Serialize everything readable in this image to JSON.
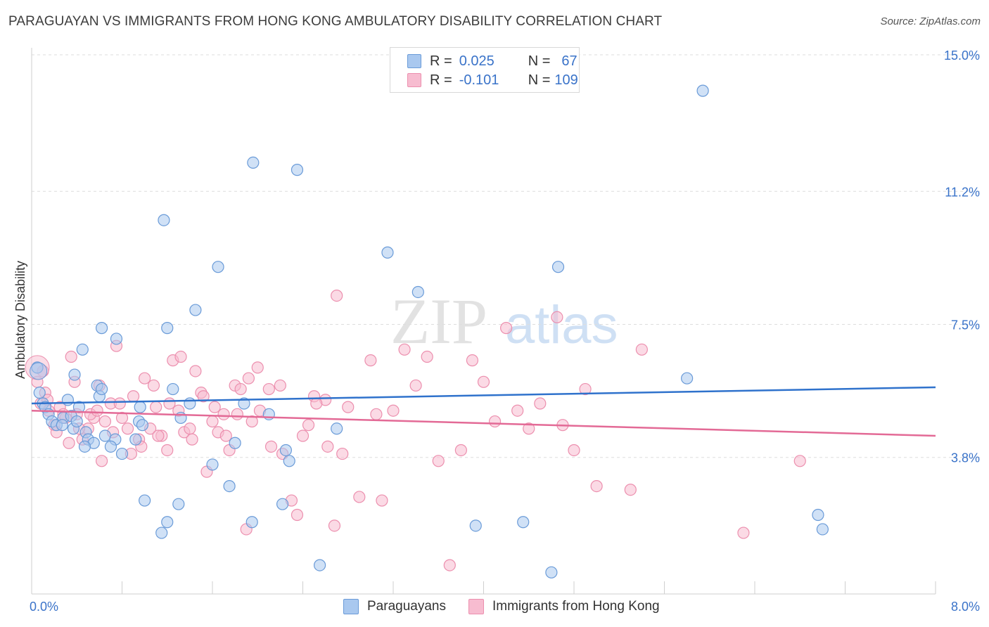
{
  "title": "PARAGUAYAN VS IMMIGRANTS FROM HONG KONG AMBULATORY DISABILITY CORRELATION CHART",
  "source": "Source: ZipAtlas.com",
  "watermark": {
    "zip": "ZIP",
    "atlas": "atlas"
  },
  "colors": {
    "blue_fill": "#a9c8ef",
    "blue_stroke": "#6a9bd8",
    "blue_line": "#2f72cc",
    "pink_fill": "#f7bcd0",
    "pink_stroke": "#ec8fae",
    "pink_line": "#e36a96",
    "axis_text": "#3a73c9"
  },
  "stats": [
    {
      "r_label": "R =",
      "r_value": "0.025",
      "n_label": "N =",
      "n_value": "67"
    },
    {
      "r_label": "R =",
      "r_value": "-0.101",
      "n_label": "N =",
      "n_value": "109"
    }
  ],
  "chart_data": {
    "type": "scatter",
    "title": "PARAGUAYAN VS IMMIGRANTS FROM HONG KONG AMBULATORY DISABILITY CORRELATION CHART",
    "xlabel": "",
    "ylabel": "Ambulatory Disability",
    "xlim": [
      0,
      8.0
    ],
    "ylim": [
      0,
      15.0
    ],
    "x_tick_labels": [
      "0.0%",
      "8.0%"
    ],
    "y_ticks": [
      3.8,
      7.5,
      11.2,
      15.0
    ],
    "y_tick_labels": [
      "3.8%",
      "7.5%",
      "11.2%",
      "15.0%"
    ],
    "legend": [
      "Paraguayans",
      "Immigrants from Hong Kong"
    ],
    "series": [
      {
        "name": "Paraguayans",
        "trend": [
          [
            0,
            5.3
          ],
          [
            8.0,
            5.75
          ]
        ],
        "points": [
          [
            0.05,
            6.3
          ],
          [
            0.07,
            5.6
          ],
          [
            0.1,
            5.3
          ],
          [
            0.12,
            5.2
          ],
          [
            0.15,
            5.0
          ],
          [
            0.18,
            4.8
          ],
          [
            0.22,
            4.7
          ],
          [
            0.28,
            4.9
          ],
          [
            0.32,
            5.4
          ],
          [
            0.37,
            4.6
          ],
          [
            0.42,
            5.2
          ],
          [
            0.48,
            4.5
          ],
          [
            0.5,
            4.3
          ],
          [
            0.55,
            4.2
          ],
          [
            0.27,
            4.7
          ],
          [
            0.35,
            4.95
          ],
          [
            0.4,
            4.8
          ],
          [
            0.6,
            5.5
          ],
          [
            0.65,
            4.4
          ],
          [
            0.74,
            4.3
          ],
          [
            0.92,
            4.3
          ],
          [
            0.8,
            3.9
          ],
          [
            0.7,
            4.1
          ],
          [
            0.58,
            5.8
          ],
          [
            0.45,
            6.8
          ],
          [
            0.62,
            7.4
          ],
          [
            0.75,
            7.1
          ],
          [
            0.95,
            4.8
          ],
          [
            0.98,
            4.7
          ],
          [
            0.38,
            6.1
          ],
          [
            0.47,
            4.1
          ],
          [
            0.96,
            5.2
          ],
          [
            0.62,
            5.7
          ],
          [
            1.0,
            2.6
          ],
          [
            1.2,
            7.4
          ],
          [
            1.25,
            5.7
          ],
          [
            1.45,
            7.9
          ],
          [
            1.4,
            5.3
          ],
          [
            1.32,
            4.9
          ],
          [
            1.3,
            2.5
          ],
          [
            1.17,
            10.4
          ],
          [
            1.2,
            2.0
          ],
          [
            1.15,
            1.7
          ],
          [
            1.65,
            9.1
          ],
          [
            1.6,
            3.6
          ],
          [
            1.75,
            3.0
          ],
          [
            1.8,
            4.2
          ],
          [
            1.88,
            5.3
          ],
          [
            1.95,
            2.0
          ],
          [
            1.96,
            12.0
          ],
          [
            2.1,
            5.0
          ],
          [
            2.25,
            4.0
          ],
          [
            2.28,
            3.7
          ],
          [
            2.22,
            2.5
          ],
          [
            2.35,
            11.8
          ],
          [
            2.55,
            0.8
          ],
          [
            2.7,
            4.6
          ],
          [
            3.15,
            9.5
          ],
          [
            3.42,
            8.4
          ],
          [
            3.93,
            1.9
          ],
          [
            4.35,
            2.0
          ],
          [
            4.6,
            0.6
          ],
          [
            4.66,
            9.1
          ],
          [
            5.8,
            6.0
          ],
          [
            5.94,
            14.0
          ],
          [
            6.96,
            2.2
          ],
          [
            7.0,
            1.8
          ]
        ]
      },
      {
        "name": "Immigrants from Hong Kong",
        "trend": [
          [
            0,
            5.1
          ],
          [
            8.0,
            4.4
          ]
        ],
        "points": [
          [
            0.05,
            5.9
          ],
          [
            0.08,
            5.3
          ],
          [
            0.12,
            5.6
          ],
          [
            0.15,
            5.1
          ],
          [
            0.2,
            4.7
          ],
          [
            0.25,
            5.2
          ],
          [
            0.3,
            4.9
          ],
          [
            0.35,
            6.6
          ],
          [
            0.4,
            5.0
          ],
          [
            0.45,
            4.3
          ],
          [
            0.5,
            4.6
          ],
          [
            0.55,
            4.9
          ],
          [
            0.6,
            5.8
          ],
          [
            0.65,
            4.8
          ],
          [
            0.7,
            5.3
          ],
          [
            0.75,
            6.9
          ],
          [
            0.8,
            4.9
          ],
          [
            0.85,
            4.6
          ],
          [
            0.9,
            5.5
          ],
          [
            0.95,
            4.3
          ],
          [
            1.0,
            6.0
          ],
          [
            1.05,
            4.6
          ],
          [
            1.1,
            5.2
          ],
          [
            1.15,
            4.4
          ],
          [
            1.2,
            4.0
          ],
          [
            1.25,
            6.5
          ],
          [
            1.3,
            5.1
          ],
          [
            1.35,
            4.5
          ],
          [
            1.4,
            4.6
          ],
          [
            1.45,
            6.2
          ],
          [
            1.5,
            5.6
          ],
          [
            1.55,
            3.4
          ],
          [
            1.6,
            4.8
          ],
          [
            1.65,
            4.5
          ],
          [
            1.7,
            5.0
          ],
          [
            1.75,
            4.0
          ],
          [
            1.8,
            5.8
          ],
          [
            1.85,
            5.7
          ],
          [
            1.9,
            1.8
          ],
          [
            1.95,
            4.8
          ],
          [
            2.0,
            6.3
          ],
          [
            2.1,
            5.7
          ],
          [
            2.2,
            5.8
          ],
          [
            2.3,
            2.6
          ],
          [
            2.35,
            2.2
          ],
          [
            2.4,
            4.4
          ],
          [
            2.45,
            4.7
          ],
          [
            2.5,
            5.5
          ],
          [
            2.6,
            5.4
          ],
          [
            2.7,
            8.3
          ],
          [
            2.75,
            3.9
          ],
          [
            2.8,
            5.2
          ],
          [
            2.9,
            2.7
          ],
          [
            3.0,
            6.5
          ],
          [
            3.1,
            2.6
          ],
          [
            3.2,
            5.1
          ],
          [
            3.3,
            6.8
          ],
          [
            3.4,
            5.8
          ],
          [
            3.5,
            6.6
          ],
          [
            3.6,
            3.7
          ],
          [
            3.7,
            0.8
          ],
          [
            3.8,
            4.0
          ],
          [
            3.9,
            6.5
          ],
          [
            4.0,
            5.9
          ],
          [
            4.1,
            4.8
          ],
          [
            4.2,
            7.4
          ],
          [
            4.3,
            5.1
          ],
          [
            4.4,
            4.6
          ],
          [
            4.5,
            5.3
          ],
          [
            4.65,
            7.7
          ],
          [
            4.7,
            4.7
          ],
          [
            4.8,
            4.0
          ],
          [
            4.9,
            5.7
          ],
          [
            5.0,
            3.0
          ],
          [
            5.3,
            2.9
          ],
          [
            5.4,
            6.8
          ],
          [
            6.3,
            1.7
          ],
          [
            6.8,
            3.7
          ],
          [
            0.1,
            6.2
          ],
          [
            0.14,
            5.4
          ],
          [
            0.22,
            4.5
          ],
          [
            0.28,
            5.0
          ],
          [
            0.33,
            4.2
          ],
          [
            0.38,
            5.9
          ],
          [
            0.42,
            4.6
          ],
          [
            0.52,
            5.0
          ],
          [
            0.58,
            5.1
          ],
          [
            0.62,
            3.7
          ],
          [
            0.72,
            4.5
          ],
          [
            0.78,
            5.3
          ],
          [
            0.88,
            3.9
          ],
          [
            0.97,
            4.1
          ],
          [
            1.08,
            5.8
          ],
          [
            1.12,
            4.4
          ],
          [
            1.22,
            5.3
          ],
          [
            1.32,
            6.6
          ],
          [
            1.42,
            4.3
          ],
          [
            1.52,
            5.5
          ],
          [
            1.62,
            5.2
          ],
          [
            1.72,
            4.4
          ],
          [
            1.82,
            5.0
          ],
          [
            1.92,
            6.0
          ],
          [
            2.02,
            5.1
          ],
          [
            2.12,
            4.1
          ],
          [
            2.22,
            3.9
          ],
          [
            2.52,
            5.3
          ],
          [
            2.62,
            4.1
          ],
          [
            2.68,
            1.9
          ],
          [
            3.05,
            5.0
          ]
        ]
      }
    ]
  }
}
